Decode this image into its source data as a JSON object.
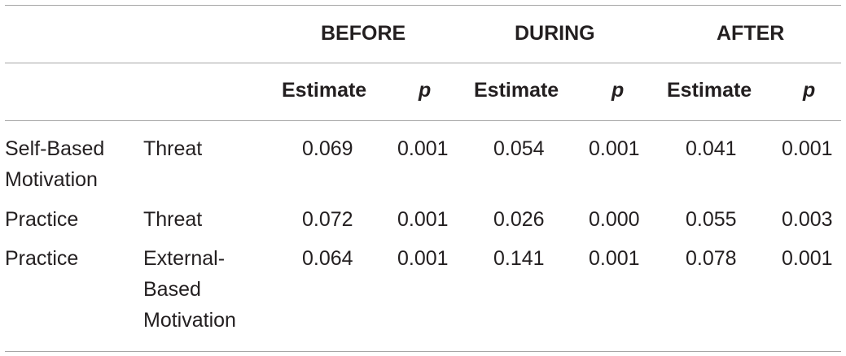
{
  "table": {
    "group_headers": [
      "BEFORE",
      "DURING",
      "AFTER"
    ],
    "sub_headers": [
      "Estimate",
      "p",
      "Estimate",
      "p",
      "Estimate",
      "p"
    ],
    "rows": [
      {
        "col1": [
          "Self-Based",
          "Motivation"
        ],
        "col2": [
          "Threat"
        ],
        "values": [
          "0.069",
          "0.001",
          "0.054",
          "0.001",
          "0.041",
          "0.001"
        ]
      },
      {
        "col1": [
          "Practice"
        ],
        "col2": [
          "Threat"
        ],
        "values": [
          "0.072",
          "0.001",
          "0.026",
          "0.000",
          "0.055",
          "0.003"
        ]
      },
      {
        "col1": [
          "Practice"
        ],
        "col2": [
          "External-",
          "Based",
          "Motivation"
        ],
        "values": [
          "0.064",
          "0.001",
          "0.141",
          "0.001",
          "0.078",
          "0.001"
        ]
      }
    ]
  }
}
